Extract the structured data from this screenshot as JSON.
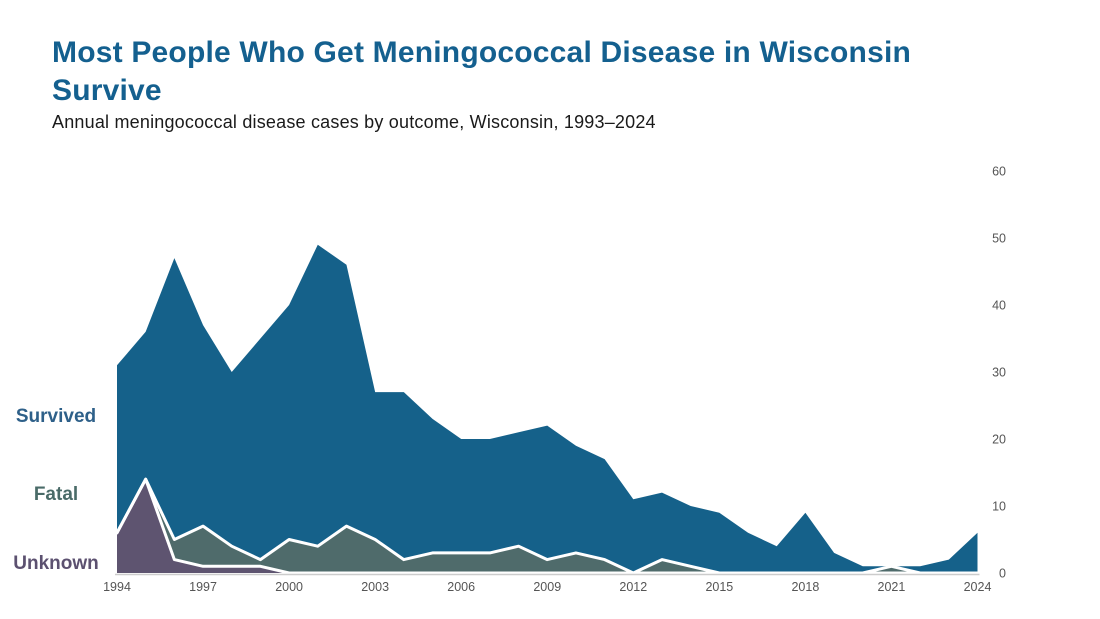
{
  "header": {
    "title": "Most People Who Get Meningococcal Disease in Wisconsin Survive",
    "subtitle": "Annual meningococcal disease cases by outcome, Wisconsin, 1993–2024"
  },
  "chart_data": {
    "type": "area",
    "stacked": true,
    "title": "Most People Who Get Meningococcal Disease in Wisconsin Survive",
    "subtitle": "Annual meningococcal disease cases by outcome, Wisconsin, 1993–2024",
    "xlabel": "",
    "ylabel": "",
    "x": [
      1994,
      1995,
      1996,
      1997,
      1998,
      1999,
      2000,
      2001,
      2002,
      2003,
      2004,
      2005,
      2006,
      2007,
      2008,
      2009,
      2010,
      2011,
      2012,
      2013,
      2014,
      2015,
      2016,
      2017,
      2018,
      2019,
      2020,
      2021,
      2022,
      2023,
      2024
    ],
    "series": [
      {
        "name": "Survived",
        "color": "#15618A",
        "label_color": "#2E6089",
        "values": [
          25,
          22,
          42,
          30,
          26,
          33,
          35,
          45,
          39,
          22,
          25,
          20,
          17,
          17,
          17,
          20,
          16,
          15,
          11,
          10,
          9,
          9,
          6,
          4,
          9,
          3,
          1,
          0,
          1,
          2,
          6
        ]
      },
      {
        "name": "Fatal",
        "color": "#4F6B6B",
        "label_color": "#4A6B68",
        "values": [
          0,
          0,
          3,
          6,
          3,
          1,
          5,
          4,
          7,
          5,
          2,
          3,
          3,
          3,
          4,
          2,
          3,
          2,
          0,
          2,
          1,
          0,
          0,
          0,
          0,
          0,
          0,
          1,
          0,
          0,
          0
        ]
      },
      {
        "name": "Unknown",
        "color": "#5E5470",
        "label_color": "#5C5170",
        "values": [
          6,
          14,
          2,
          1,
          1,
          1,
          0,
          0,
          0,
          0,
          0,
          0,
          0,
          0,
          0,
          0,
          0,
          0,
          0,
          0,
          0,
          0,
          0,
          0,
          0,
          0,
          0,
          0,
          0,
          0,
          0
        ]
      }
    ],
    "x_ticks": [
      1994,
      1997,
      2000,
      2003,
      2006,
      2009,
      2012,
      2015,
      2018,
      2021,
      2024
    ],
    "y_ticks": [
      0,
      10,
      20,
      30,
      40,
      50,
      60
    ],
    "ylim": [
      0,
      60
    ],
    "y_axis_side": "right",
    "grid": false,
    "legend_position": "left",
    "separator_color": "#ffffff",
    "axis_line_color": "#cccccc",
    "tick_color": "#555555"
  }
}
